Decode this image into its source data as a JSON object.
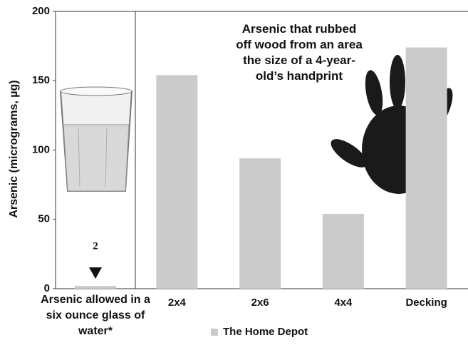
{
  "chart_data": {
    "type": "bar",
    "y_label": "Arsenic (micrograms, µg)",
    "categories": [
      "Arsenic allowed in a six ounce glass of water*",
      "2x4",
      "2x6",
      "4x4",
      "Decking"
    ],
    "series": [
      {
        "name": "The Home Depot",
        "color": "#cbcbcb",
        "values": [
          2,
          154,
          94,
          54,
          174
        ]
      }
    ],
    "ylim": [
      0,
      200
    ],
    "yticks": [
      0,
      50,
      100,
      150,
      200
    ],
    "grid": false,
    "annotation": "Arsenic that rubbed off wood from an area the size of a 4-year-old’s handprint"
  }
}
